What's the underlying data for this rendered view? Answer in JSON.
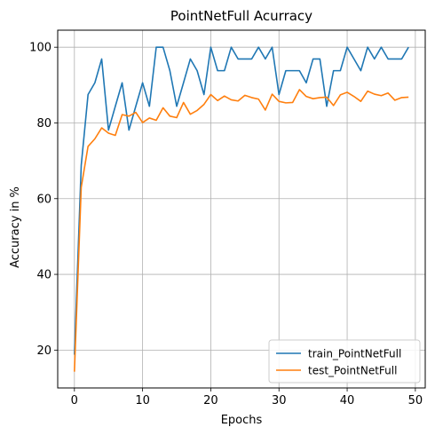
{
  "chart_data": {
    "type": "line",
    "title": "PointNetFull Acurracy",
    "xlabel": "Epochs",
    "ylabel": "Accuracy in %",
    "xlim": [
      -2.45,
      51.45
    ],
    "ylim": [
      10,
      104.5
    ],
    "xticks": [
      0,
      10,
      20,
      30,
      40,
      50
    ],
    "yticks": [
      20,
      40,
      60,
      80,
      100
    ],
    "grid": true,
    "legend_position": "lower-right",
    "x": [
      0,
      1,
      2,
      3,
      4,
      5,
      6,
      7,
      8,
      9,
      10,
      11,
      12,
      13,
      14,
      15,
      16,
      17,
      18,
      19,
      20,
      21,
      22,
      23,
      24,
      25,
      26,
      27,
      28,
      29,
      30,
      31,
      32,
      33,
      34,
      35,
      36,
      37,
      38,
      39,
      40,
      41,
      42,
      43,
      44,
      45,
      46,
      47,
      48,
      49
    ],
    "series": [
      {
        "name": "train_PointNetFull",
        "color": "#1f77b4",
        "values": [
          18.8,
          68.8,
          87.5,
          90.6,
          96.9,
          78.1,
          84.4,
          90.6,
          78.1,
          84.4,
          90.6,
          84.4,
          100,
          100,
          93.8,
          84.4,
          90.6,
          96.9,
          93.8,
          87.5,
          100,
          93.8,
          93.8,
          100,
          96.9,
          96.9,
          96.9,
          100,
          96.9,
          100,
          87.5,
          93.8,
          93.8,
          93.8,
          90.6,
          96.9,
          96.9,
          84.4,
          93.8,
          93.8,
          100,
          96.9,
          93.8,
          100,
          96.9,
          100,
          96.9,
          96.9,
          96.9,
          100
        ]
      },
      {
        "name": "test_PointNetFull",
        "color": "#ff7f0e",
        "values": [
          14.3,
          63.0,
          73.8,
          75.8,
          78.7,
          77.3,
          76.7,
          82.2,
          81.8,
          82.8,
          80.1,
          81.3,
          80.7,
          84.0,
          81.8,
          81.4,
          85.4,
          82.3,
          83.3,
          84.9,
          87.5,
          85.9,
          87.1,
          86.1,
          85.8,
          87.3,
          86.7,
          86.3,
          83.4,
          87.6,
          85.7,
          85.3,
          85.4,
          88.8,
          87.0,
          86.4,
          86.7,
          86.8,
          84.6,
          87.4,
          88.1,
          87.0,
          85.7,
          88.4,
          87.6,
          87.2,
          87.9,
          86.0,
          86.7,
          86.8
        ]
      }
    ]
  }
}
